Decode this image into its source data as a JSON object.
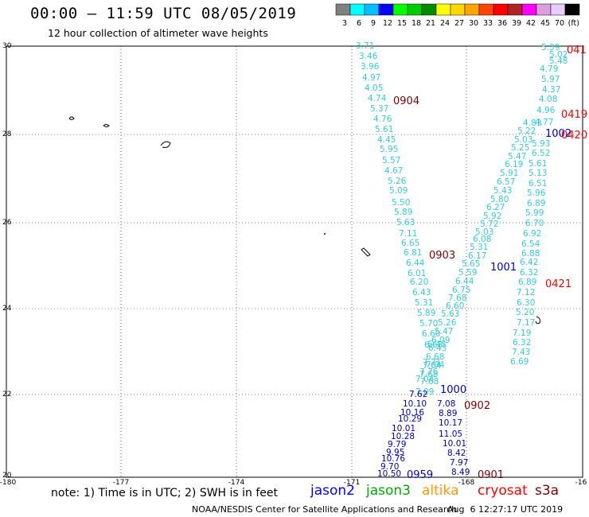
{
  "header": {
    "title": "00:00 – 11:59 UTC 08/05/2019",
    "subtitle": "12 hour collection of altimeter wave heights"
  },
  "colorbar": {
    "unit_label": "(ft)",
    "bins": [
      {
        "label": "3",
        "color": "#808080"
      },
      {
        "label": "6",
        "color": "#00ffff"
      },
      {
        "label": "9",
        "color": "#00bfff"
      },
      {
        "label": "12",
        "color": "#0000ff"
      },
      {
        "label": "15",
        "color": "#00ff00"
      },
      {
        "label": "18",
        "color": "#00cd00"
      },
      {
        "label": "21",
        "color": "#008b00"
      },
      {
        "label": "24",
        "color": "#ffff00"
      },
      {
        "label": "27",
        "color": "#ffd700"
      },
      {
        "label": "30",
        "color": "#ffa500"
      },
      {
        "label": "33",
        "color": "#ff4500"
      },
      {
        "label": "36",
        "color": "#ff0000"
      },
      {
        "label": "39",
        "color": "#b22222"
      },
      {
        "label": "42",
        "color": "#ff00ff"
      },
      {
        "label": "45",
        "color": "#dda0dd"
      },
      {
        "label": "70",
        "color": "#e6ccff"
      },
      {
        "label": "",
        "color": "#000000"
      }
    ]
  },
  "map": {
    "lon_range": [
      -180,
      -166
    ],
    "lat_range": [
      20,
      30
    ],
    "lon_ticks": [
      "-180",
      "-177",
      "-174",
      "-171",
      "-168",
      "-16"
    ],
    "lat_ticks": [
      "30",
      "28",
      "26",
      "24",
      "22",
      "20"
    ],
    "tracks": [
      {
        "id": "t1",
        "color": "#33ccdd",
        "values": [
          "3.71",
          "3.46",
          "3.96",
          "4.97",
          "4.05",
          "4.74",
          "5.37",
          "4.76",
          "5.61",
          "4.45",
          "5.95",
          "5.57",
          "4.67",
          "5.26",
          "5.09",
          "5.50",
          "5.89",
          "5.63",
          "7.11",
          "6.65",
          "6.81",
          "6.44",
          "6.01",
          "6.20",
          "6.43",
          "5.31",
          "5.89",
          "5.70",
          "6.60",
          "6.43",
          "6.68",
          "7.71",
          "7.04",
          "7.76",
          "7.68",
          "7.04",
          "7.09"
        ]
      },
      {
        "id": "t2",
        "color": "#33ccdd",
        "values": [
          "5.39",
          "5.02",
          "5.48",
          "4.79",
          "5.97",
          "4.37",
          "4.08",
          "4.96",
          "4.77",
          "4.83",
          "5.22",
          "5.03",
          "5.25",
          "5.47",
          "6.19",
          "5.91",
          "6.57",
          "5.43",
          "5.80",
          "6.27",
          "5.92",
          "5.72",
          "5.03",
          "6.08",
          "5.31",
          "6.17",
          "5.65",
          "5.59",
          "6.44",
          "6.75",
          "7.68",
          "6.60",
          "5.63",
          "5.26",
          "5.47",
          "6.09",
          "6.43",
          "6.68",
          "7.64",
          "7.68"
        ]
      },
      {
        "id": "t3",
        "color": "#33ccdd",
        "values": [
          "5.93",
          "6.52",
          "5.61",
          "5.13",
          "6.51",
          "5.96",
          "6.89",
          "5.99",
          "6.70",
          "6.92",
          "6.54",
          "6.88",
          "6.42",
          "6.32",
          "6.89",
          "7.12",
          "6.30",
          "5.20",
          "7.17",
          "7.19",
          "6.32",
          "7.43",
          "6.69"
        ]
      },
      {
        "id": "t4",
        "color": "#0000cc",
        "values": [
          "7.62",
          "10.10",
          "10.16",
          "10.29",
          "10.01",
          "10.28",
          "9.79",
          "9.95",
          "10.76",
          "9.70",
          "10.50"
        ]
      },
      {
        "id": "t5",
        "color": "#0000cc",
        "values": [
          "7.08",
          "8.89",
          "10.17",
          "11.05",
          "10.01",
          "8.42",
          "7.97",
          "8.49"
        ]
      }
    ],
    "pass_labels": [
      {
        "text": "0904",
        "color": "#800000"
      },
      {
        "text": "041",
        "color": "#ee0000"
      },
      {
        "text": "0419",
        "color": "#ee0000"
      },
      {
        "text": "1002",
        "color": "#0000cc"
      },
      {
        "text": "0420",
        "color": "#ee0000"
      },
      {
        "text": "0903",
        "color": "#800000"
      },
      {
        "text": "1001",
        "color": "#0000cc"
      },
      {
        "text": "0421",
        "color": "#ee0000"
      },
      {
        "text": "1000",
        "color": "#0000cc"
      },
      {
        "text": "0902",
        "color": "#800000"
      },
      {
        "text": "0959",
        "color": "#0000cc"
      },
      {
        "text": "0901",
        "color": "#800000"
      }
    ]
  },
  "footer": {
    "note": "note: 1) Time is in UTC; 2) SWH is in feet",
    "satellites": [
      {
        "name": "jason2",
        "color": "#0000ff"
      },
      {
        "name": "jason3",
        "color": "#00aa00"
      },
      {
        "name": "altika",
        "color": "#ff9900"
      },
      {
        "name": "cryosat",
        "color": "#ff0000"
      },
      {
        "name": "s3a",
        "color": "#800000"
      }
    ],
    "credit": "NOAA/NESDIS Center for Satellite Applications and Research",
    "timestamp": "Aug  6 12:27:17 UTC 2019"
  }
}
